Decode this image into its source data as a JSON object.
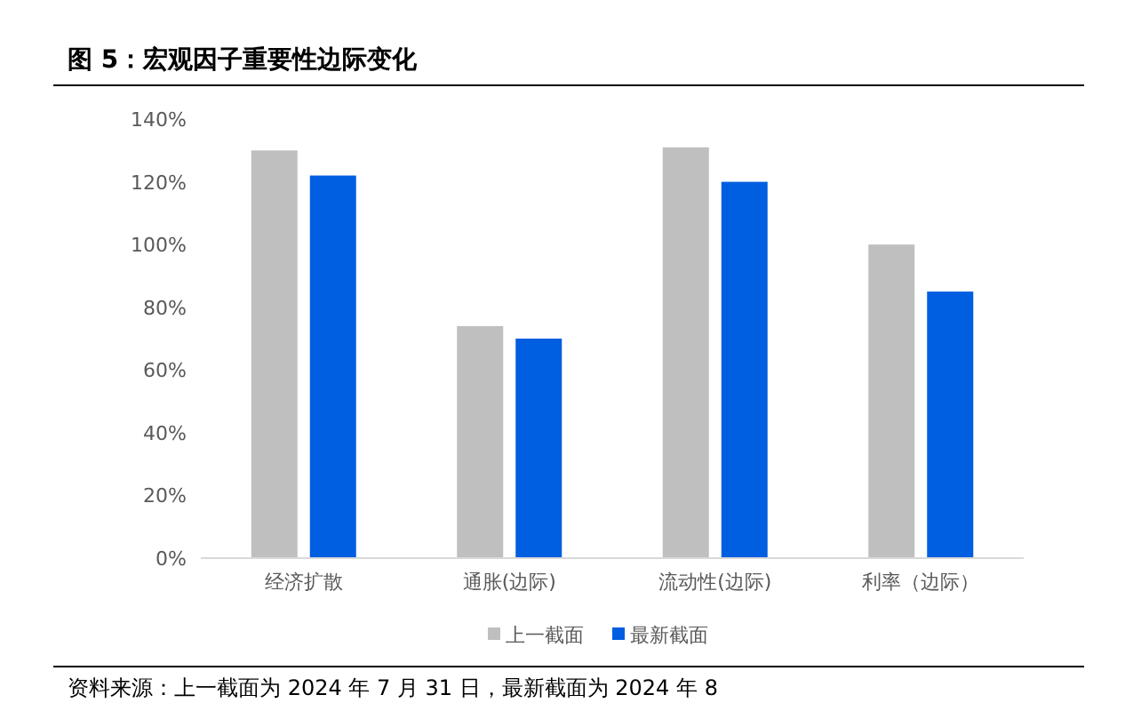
{
  "chart_data": {
    "type": "bar",
    "title": "图 5：宏观因子重要性边际变化",
    "categories": [
      "经济扩散",
      "通胀(边际)",
      "流动性(边际)",
      "利率（边际）"
    ],
    "series": [
      {
        "name": "上一截面",
        "color": "#bfbfbf",
        "values": [
          130,
          74,
          131,
          100
        ]
      },
      {
        "name": "最新截面",
        "color": "#005ee0",
        "values": [
          122,
          70,
          120,
          85
        ]
      }
    ],
    "ylim": [
      0,
      140
    ],
    "yticks": [
      {
        "value": 0,
        "label": "0%"
      },
      {
        "value": 20,
        "label": "20%"
      },
      {
        "value": 40,
        "label": "40%"
      },
      {
        "value": 60,
        "label": "60%"
      },
      {
        "value": 80,
        "label": "80%"
      },
      {
        "value": 100,
        "label": "100%"
      },
      {
        "value": 120,
        "label": "120%"
      },
      {
        "value": 140,
        "label": "140%"
      }
    ],
    "grid": false,
    "legend": "bottom",
    "annotations": [
      "资料来源：上一截面为 2024 年 7 月 31 日，最新截面为 2024 年 8"
    ]
  }
}
